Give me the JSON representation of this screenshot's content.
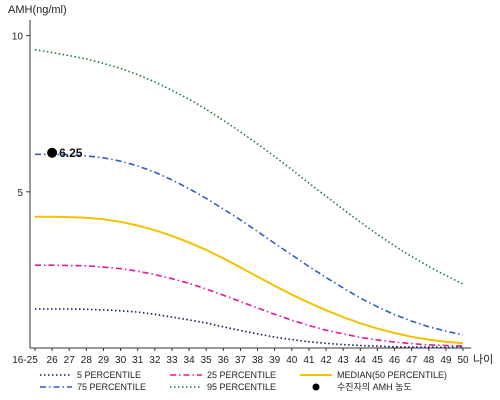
{
  "chart_data": {
    "type": "line",
    "ylabel": "AMH(ng/ml)",
    "xlabel": "나이",
    "ylim": [
      0,
      10.5
    ],
    "yticks": [
      5,
      10
    ],
    "categories": [
      "16-25",
      "26",
      "27",
      "28",
      "29",
      "30",
      "31",
      "32",
      "33",
      "34",
      "35",
      "36",
      "37",
      "38",
      "39",
      "40",
      "41",
      "42",
      "43",
      "44",
      "45",
      "46",
      "47",
      "48",
      "49",
      "50"
    ],
    "grid": false,
    "legend_position": "bottom",
    "series": [
      {
        "name": "5 PERCENTILE",
        "color": "#0a1a6e",
        "style": "dotted",
        "values": [
          1.25,
          1.25,
          1.25,
          1.24,
          1.22,
          1.19,
          1.15,
          1.08,
          0.99,
          0.9,
          0.8,
          0.68,
          0.56,
          0.45,
          0.35,
          0.27,
          0.2,
          0.15,
          0.11,
          0.08,
          0.06,
          0.04,
          0.03,
          0.03,
          0.02,
          0.02
        ]
      },
      {
        "name": "25 PERCENTILE",
        "color": "#e0179c",
        "style": "dash-dot",
        "values": [
          2.65,
          2.65,
          2.64,
          2.63,
          2.59,
          2.54,
          2.46,
          2.35,
          2.22,
          2.07,
          1.89,
          1.69,
          1.49,
          1.28,
          1.08,
          0.89,
          0.72,
          0.57,
          0.45,
          0.34,
          0.26,
          0.19,
          0.14,
          0.1,
          0.08,
          0.06
        ]
      },
      {
        "name": "MEDIAN(50 PERCENTILE)",
        "color": "#f2c200",
        "style": "solid",
        "values": [
          4.2,
          4.2,
          4.19,
          4.17,
          4.12,
          4.04,
          3.92,
          3.77,
          3.59,
          3.38,
          3.14,
          2.87,
          2.58,
          2.28,
          1.99,
          1.71,
          1.45,
          1.21,
          0.99,
          0.79,
          0.62,
          0.48,
          0.36,
          0.27,
          0.2,
          0.15
        ]
      },
      {
        "name": "75 PERCENTILE",
        "color": "#2f5cc7",
        "style": "dash-dot",
        "values": [
          6.2,
          6.2,
          6.19,
          6.15,
          6.09,
          5.98,
          5.83,
          5.63,
          5.38,
          5.1,
          4.79,
          4.45,
          4.1,
          3.73,
          3.35,
          2.98,
          2.61,
          2.26,
          1.92,
          1.6,
          1.32,
          1.07,
          0.86,
          0.68,
          0.54,
          0.42
        ]
      },
      {
        "name": "95 PERCENTILE",
        "color": "#1f7a3a",
        "style": "dotted",
        "values": [
          9.55,
          9.46,
          9.36,
          9.25,
          9.11,
          8.95,
          8.75,
          8.52,
          8.25,
          7.96,
          7.64,
          7.29,
          6.92,
          6.53,
          6.13,
          5.71,
          5.28,
          4.86,
          4.44,
          4.03,
          3.64,
          3.27,
          2.93,
          2.61,
          2.32,
          2.05
        ]
      }
    ],
    "marker": {
      "name": "수진자의 AMH 농도",
      "x": "26",
      "y": 6.25,
      "label": "6.25",
      "color": "#000000"
    }
  }
}
